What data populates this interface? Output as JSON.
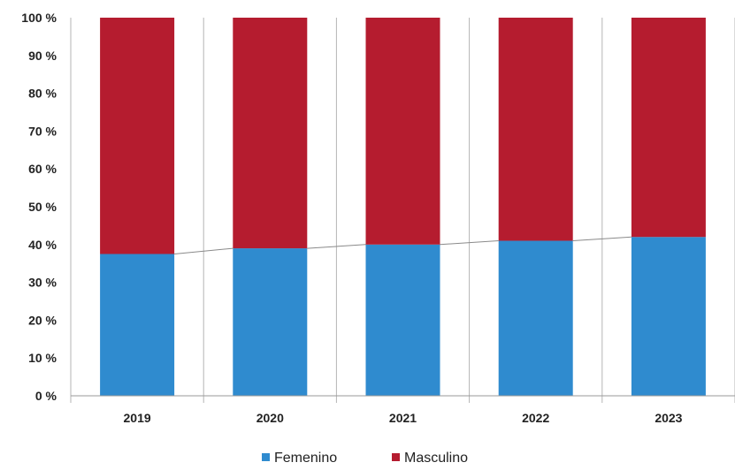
{
  "chart_data": {
    "type": "bar",
    "stacked": true,
    "categories": [
      "2019",
      "2020",
      "2021",
      "2022",
      "2023"
    ],
    "series": [
      {
        "name": "Femenino",
        "values": [
          37.5,
          39,
          40,
          41,
          42
        ],
        "color": "#2f8bcf"
      },
      {
        "name": "Masculino",
        "values": [
          62.5,
          61,
          60,
          59,
          58
        ],
        "color": "#b51c2f"
      }
    ],
    "ylim": [
      0,
      100
    ],
    "yticks": [
      "0 %",
      "10 %",
      "20 %",
      "30 %",
      "40 %",
      "50 %",
      "60 %",
      "70 %",
      "80 %",
      "90 %",
      "100 %"
    ],
    "grid": "vertical category separators",
    "series_line_color": "#8a8a8a",
    "legend": {
      "position": "bottom-center",
      "items": [
        "Femenino",
        "Masculino"
      ]
    }
  }
}
